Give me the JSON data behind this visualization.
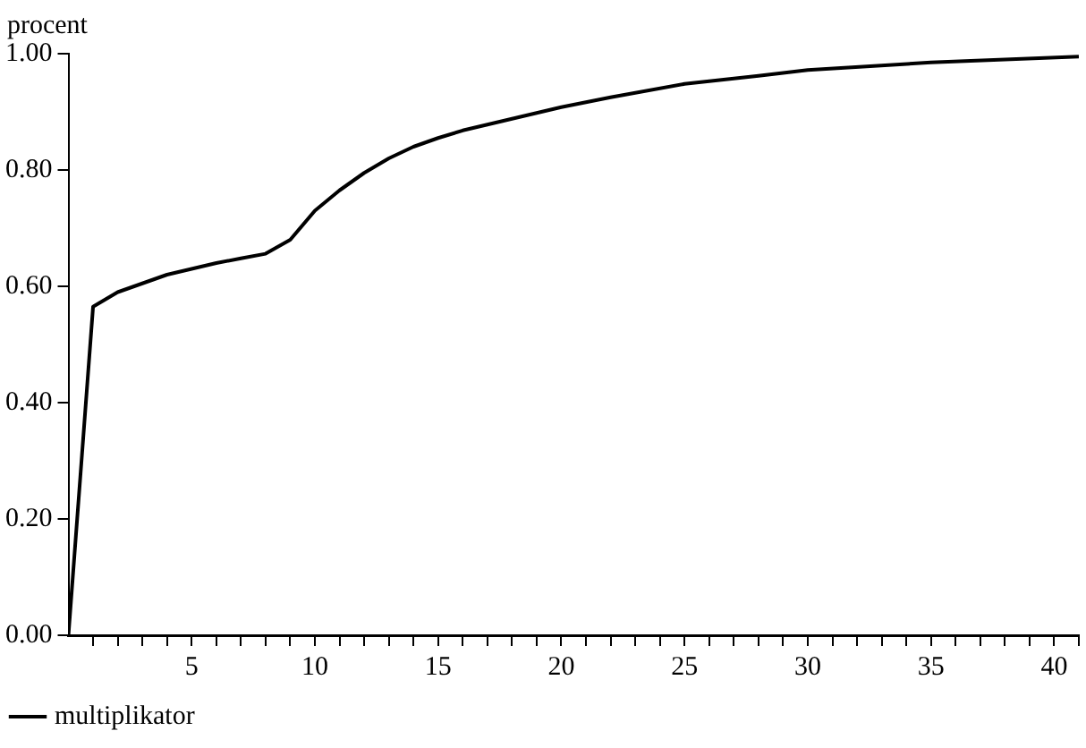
{
  "chart_data": {
    "type": "line",
    "ylabel": "procent",
    "legend": "bottom left",
    "grid": false,
    "marker": "none",
    "line_style": "solid",
    "xlim": [
      0,
      41
    ],
    "ylim": [
      0,
      1
    ],
    "yticks": [
      {
        "value": 0,
        "label": "0.00"
      },
      {
        "value": 0.2,
        "label": "0.20"
      },
      {
        "value": 0.4,
        "label": "0.40"
      },
      {
        "value": 0.6,
        "label": "0.60"
      },
      {
        "value": 0.8,
        "label": "0.80"
      },
      {
        "value": 1,
        "label": "1.00"
      }
    ],
    "xticks": [
      {
        "value": 1,
        "label": null
      },
      {
        "value": 2,
        "label": null
      },
      {
        "value": 3,
        "label": null
      },
      {
        "value": 4,
        "label": null
      },
      5,
      {
        "value": 6,
        "label": null
      },
      {
        "value": 7,
        "label": null
      },
      {
        "value": 8,
        "label": null
      },
      {
        "value": 9,
        "label": null
      },
      10,
      {
        "value": 11,
        "label": null
      },
      {
        "value": 12,
        "label": null
      },
      {
        "value": 13,
        "label": null
      },
      {
        "value": 14,
        "label": null
      },
      15,
      {
        "value": 16,
        "label": null
      },
      {
        "value": 17,
        "label": null
      },
      {
        "value": 18,
        "label": null
      },
      {
        "value": 19,
        "label": null
      },
      20,
      {
        "value": 21,
        "label": null
      },
      {
        "value": 22,
        "label": null
      },
      {
        "value": 23,
        "label": null
      },
      {
        "value": 24,
        "label": null
      },
      25,
      {
        "value": 26,
        "label": null
      },
      {
        "value": 27,
        "label": null
      },
      {
        "value": 28,
        "label": null
      },
      {
        "value": 29,
        "label": null
      },
      30,
      {
        "value": 31,
        "label": null
      },
      {
        "value": 32,
        "label": null
      },
      {
        "value": 33,
        "label": null
      },
      {
        "value": 34,
        "label": null
      },
      35,
      {
        "value": 36,
        "label": null
      },
      {
        "value": 37,
        "label": null
      },
      {
        "value": 38,
        "label": null
      },
      {
        "value": 39,
        "label": null
      },
      40,
      {
        "value": 41,
        "label": null
      }
    ],
    "x": [
      0,
      1,
      2,
      3,
      4,
      5,
      6,
      7,
      8,
      9,
      10,
      11,
      12,
      13,
      14,
      15,
      16,
      17,
      18,
      19,
      20,
      22,
      25,
      28,
      30,
      35,
      41
    ],
    "series": [
      {
        "name": "multiplikator",
        "color": "#000000",
        "values": [
          0,
          0.565,
          0.59,
          0.605,
          0.62,
          0.63,
          0.64,
          0.648,
          0.656,
          0.68,
          0.73,
          0.765,
          0.795,
          0.82,
          0.84,
          0.855,
          0.868,
          0.878,
          0.888,
          0.898,
          0.908,
          0.925,
          0.948,
          0.962,
          0.972,
          0.985,
          0.995
        ]
      }
    ]
  }
}
